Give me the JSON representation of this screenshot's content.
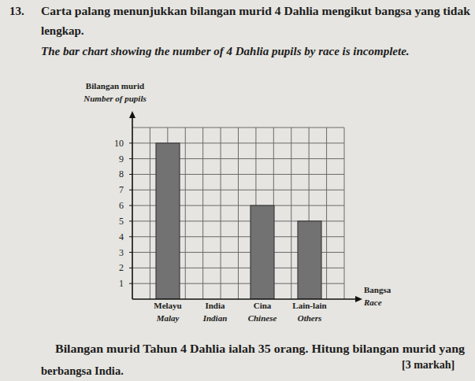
{
  "question": {
    "number": "13.",
    "text_ms": [
      "Carta palang menunjukkan bilangan murid 4 Dahlia mengikut bangsa yang tidak",
      "lengkap."
    ],
    "text_en": "The bar chart showing the number of 4 Dahlia pupils by race is incomplete.",
    "prompt_ms": [
      "Bilangan murid Tahun 4 Dahlia ialah 35 orang. Hitung bilangan murid yang",
      "berbangsa India."
    ],
    "marks": "[3 markah]"
  },
  "chart_data": {
    "type": "bar",
    "y_label": "Bilangan murid",
    "y_label_en": "Number of pupils",
    "x_label": "Bangsa",
    "x_label_en": "Race",
    "categories": [
      "Melayu",
      "India",
      "Cina",
      "Lain-lain"
    ],
    "categories_en": [
      "Malay",
      "Indian",
      "Chinese",
      "Others"
    ],
    "values": [
      10,
      null,
      6,
      5
    ],
    "color": "#727272",
    "ylim": [
      0,
      11
    ],
    "yticks": [
      1,
      2,
      3,
      4,
      5,
      6,
      7,
      8,
      9,
      10
    ],
    "grid": true
  }
}
